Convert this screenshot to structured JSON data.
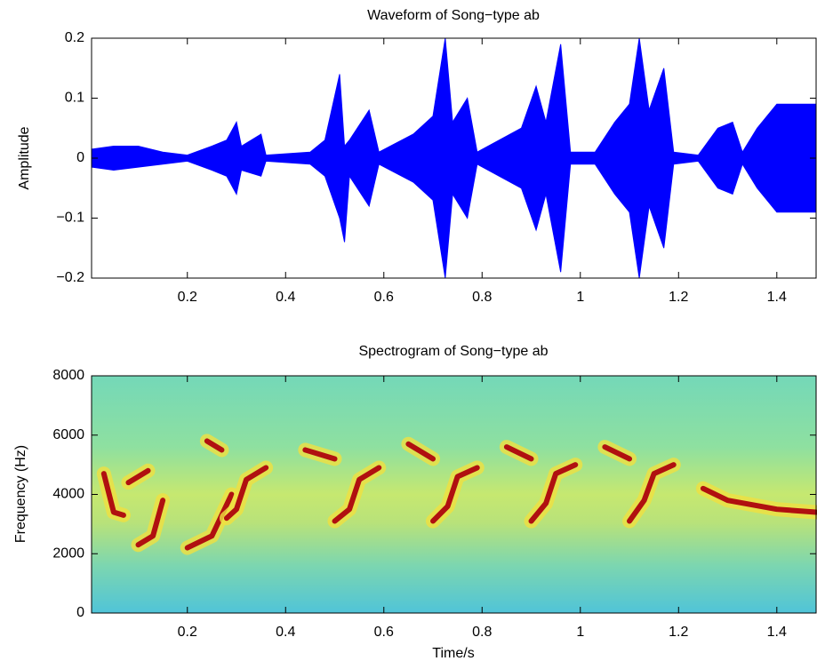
{
  "chart_data": [
    {
      "type": "waveform",
      "title": "Waveform of Song−type ab",
      "ylabel": "Amplitude",
      "color": "#0000ff",
      "x": [
        0.005,
        0.05,
        0.1,
        0.15,
        0.2,
        0.25,
        0.28,
        0.3,
        0.31,
        0.35,
        0.36,
        0.45,
        0.48,
        0.51,
        0.52,
        0.53,
        0.57,
        0.59,
        0.66,
        0.7,
        0.725,
        0.74,
        0.77,
        0.79,
        0.88,
        0.91,
        0.93,
        0.96,
        0.98,
        1.03,
        1.07,
        1.1,
        1.12,
        1.14,
        1.17,
        1.19,
        1.24,
        1.28,
        1.31,
        1.33,
        1.36,
        1.4,
        1.44,
        1.48
      ],
      "upper": [
        0.015,
        0.02,
        0.02,
        0.01,
        0.005,
        0.02,
        0.03,
        0.06,
        0.02,
        0.04,
        0.005,
        0.01,
        0.03,
        0.14,
        0.02,
        0.03,
        0.08,
        0.01,
        0.04,
        0.07,
        0.2,
        0.06,
        0.1,
        0.01,
        0.05,
        0.12,
        0.06,
        0.19,
        0.01,
        0.01,
        0.06,
        0.09,
        0.2,
        0.08,
        0.15,
        0.01,
        0.005,
        0.05,
        0.06,
        0.01,
        0.05,
        0.09,
        0.09,
        0.09
      ],
      "lower": [
        -0.015,
        -0.02,
        -0.015,
        -0.01,
        -0.005,
        -0.02,
        -0.03,
        -0.06,
        -0.02,
        -0.03,
        -0.005,
        -0.01,
        -0.03,
        -0.1,
        -0.14,
        -0.03,
        -0.08,
        -0.01,
        -0.04,
        -0.07,
        -0.2,
        -0.06,
        -0.1,
        -0.01,
        -0.05,
        -0.12,
        -0.06,
        -0.19,
        -0.01,
        -0.01,
        -0.06,
        -0.09,
        -0.2,
        -0.08,
        -0.15,
        -0.01,
        -0.005,
        -0.05,
        -0.06,
        -0.01,
        -0.05,
        -0.09,
        -0.09,
        -0.09
      ],
      "xlim": [
        0.005,
        1.48
      ],
      "xticks": [
        0.2,
        0.4,
        0.6,
        0.8,
        1,
        1.2,
        1.4
      ],
      "ylim": [
        -0.2,
        0.2
      ],
      "yticks": [
        {
          "value": -0.2,
          "label": "−0.2"
        },
        {
          "value": -0.1,
          "label": "−0.1"
        },
        0,
        0.1,
        0.2
      ]
    },
    {
      "type": "spectrogram",
      "title": "Spectrogram of Song−type ab",
      "xlabel": "Time/s",
      "ylabel": "Frequency (Hz)",
      "color": "#b01010",
      "tracks": [
        {
          "x": [
            0.03,
            0.05,
            0.07
          ],
          "y": [
            4700,
            3400,
            3300
          ]
        },
        {
          "x": [
            0.08,
            0.12
          ],
          "y": [
            4400,
            4800
          ]
        },
        {
          "x": [
            0.1,
            0.13,
            0.15
          ],
          "y": [
            2300,
            2600,
            3800
          ]
        },
        {
          "x": [
            0.2,
            0.25,
            0.29
          ],
          "y": [
            2200,
            2600,
            4000
          ]
        },
        {
          "x": [
            0.24,
            0.27
          ],
          "y": [
            5800,
            5500
          ]
        },
        {
          "x": [
            0.28,
            0.3,
            0.32,
            0.36
          ],
          "y": [
            3200,
            3500,
            4500,
            4900
          ]
        },
        {
          "x": [
            0.44,
            0.5
          ],
          "y": [
            5500,
            5200
          ]
        },
        {
          "x": [
            0.5,
            0.53,
            0.55,
            0.59
          ],
          "y": [
            3100,
            3500,
            4500,
            4900
          ]
        },
        {
          "x": [
            0.65,
            0.7
          ],
          "y": [
            5700,
            5200
          ]
        },
        {
          "x": [
            0.7,
            0.73,
            0.75,
            0.79
          ],
          "y": [
            3100,
            3600,
            4600,
            4900
          ]
        },
        {
          "x": [
            0.85,
            0.9
          ],
          "y": [
            5600,
            5200
          ]
        },
        {
          "x": [
            0.9,
            0.93,
            0.95,
            0.99
          ],
          "y": [
            3100,
            3700,
            4700,
            5000
          ]
        },
        {
          "x": [
            1.05,
            1.1
          ],
          "y": [
            5600,
            5200
          ]
        },
        {
          "x": [
            1.1,
            1.13,
            1.15,
            1.19
          ],
          "y": [
            3100,
            3800,
            4700,
            5000
          ]
        },
        {
          "x": [
            1.25,
            1.3,
            1.4,
            1.48
          ],
          "y": [
            4200,
            3800,
            3500,
            3400
          ]
        }
      ],
      "xlim": [
        0.005,
        1.48
      ],
      "xticks": [
        0.2,
        0.4,
        0.6,
        0.8,
        1,
        1.2,
        1.4
      ],
      "ylim": [
        0,
        8000
      ],
      "yticks": [
        0,
        2000,
        4000,
        6000,
        8000
      ]
    }
  ]
}
